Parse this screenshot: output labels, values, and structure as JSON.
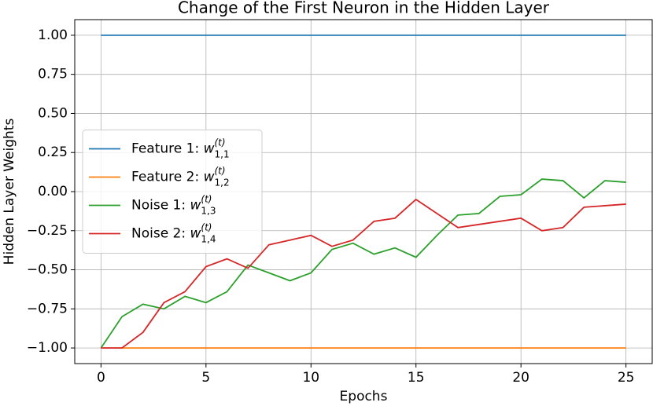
{
  "chart_data": {
    "type": "line",
    "title": "Change of the First Neuron in the Hidden Layer",
    "x_label": "Epochs",
    "y_label": "Hidden Layer Weights",
    "x": [
      0,
      1,
      2,
      3,
      4,
      5,
      6,
      7,
      8,
      9,
      10,
      11,
      12,
      13,
      14,
      15,
      16,
      17,
      18,
      19,
      20,
      21,
      22,
      23,
      24,
      25
    ],
    "series": [
      {
        "name": "Feature 1: w_{1,1}^{(t)}",
        "color": "#1f77b4",
        "values": [
          1,
          1,
          1,
          1,
          1,
          1,
          1,
          1,
          1,
          1,
          1,
          1,
          1,
          1,
          1,
          1,
          1,
          1,
          1,
          1,
          1,
          1,
          1,
          1,
          1,
          1
        ]
      },
      {
        "name": "Feature 2: w_{1,2}^{(t)}",
        "color": "#ff7f0e",
        "values": [
          -1,
          -1,
          -1,
          -1,
          -1,
          -1,
          -1,
          -1,
          -1,
          -1,
          -1,
          -1,
          -1,
          -1,
          -1,
          -1,
          -1,
          -1,
          -1,
          -1,
          -1,
          -1,
          -1,
          -1,
          -1,
          -1
        ]
      },
      {
        "name": "Noise 1: w_{1,3}^{(t)}",
        "color": "#2ca02c",
        "values": [
          -1,
          -0.8,
          -0.72,
          -0.75,
          -0.67,
          -0.71,
          -0.64,
          -0.47,
          -0.52,
          -0.57,
          -0.52,
          -0.37,
          -0.33,
          -0.4,
          -0.36,
          -0.42,
          -0.28,
          -0.15,
          -0.14,
          -0.03,
          -0.02,
          0.08,
          0.07,
          -0.04,
          0.07,
          0.06
        ]
      },
      {
        "name": "Noise 2: w_{1,4}^{(t)}",
        "color": "#d62728",
        "values": [
          -1,
          -1,
          -0.9,
          -0.71,
          -0.64,
          -0.48,
          -0.43,
          -0.49,
          -0.34,
          -0.31,
          -0.28,
          -0.35,
          -0.31,
          -0.19,
          -0.17,
          -0.05,
          -0.14,
          -0.23,
          -0.21,
          -0.19,
          -0.17,
          -0.25,
          -0.23,
          -0.1,
          -0.09,
          -0.08
        ]
      }
    ],
    "xlim": [
      -1.25,
      26.25
    ],
    "ylim": [
      -1.1,
      1.1
    ],
    "xticks": [
      0,
      5,
      10,
      15,
      20,
      25
    ],
    "yticks": [
      {
        "value": 1,
        "label": "1.00"
      },
      {
        "value": 0.75,
        "label": "0.75"
      },
      {
        "value": 0.5,
        "label": "0.50"
      },
      {
        "value": 0.25,
        "label": "0.25"
      },
      {
        "value": 0,
        "label": "0.00"
      },
      {
        "value": -0.25,
        "label": "−0.25"
      },
      {
        "value": -0.5,
        "label": "−0.50"
      },
      {
        "value": -0.75,
        "label": "−0.75"
      },
      {
        "value": -1,
        "label": "−1.00"
      }
    ],
    "grid": true,
    "legend": "center left"
  }
}
